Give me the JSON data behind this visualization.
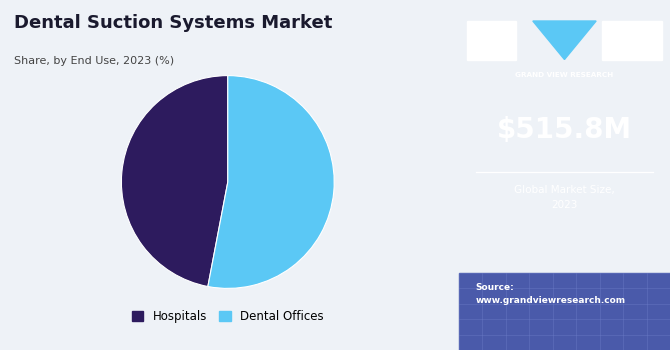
{
  "title": "Dental Suction Systems Market",
  "subtitle": "Share, by End Use, 2023 (%)",
  "pie_labels": [
    "Hospitals",
    "Dental Offices"
  ],
  "pie_values": [
    47,
    53
  ],
  "pie_colors": [
    "#2d1b5e",
    "#5bc8f5"
  ],
  "pie_startangle": 90,
  "legend_labels": [
    "Hospitals",
    "Dental Offices"
  ],
  "main_bg": "#eef2f7",
  "sidebar_bg": "#3b1f6e",
  "sidebar_bottom_bg": "#4a5aaa",
  "market_size": "$515.8M",
  "market_size_label": "Global Market Size,\n2023",
  "source_label": "Source:\nwww.grandviewresearch.com",
  "brand_name": "GRAND VIEW RESEARCH"
}
